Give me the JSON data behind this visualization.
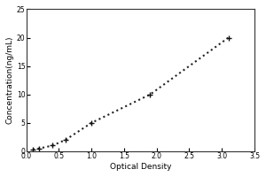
{
  "x_data": [
    0.1,
    0.2,
    0.4,
    0.6,
    1.0,
    1.9,
    3.1
  ],
  "y_data": [
    0.3,
    0.5,
    1.0,
    2.0,
    5.0,
    10.0,
    20.0
  ],
  "xlabel": "Optical Density",
  "ylabel": "Concentration(ng/mL)",
  "xlim": [
    0,
    3.5
  ],
  "ylim": [
    0,
    25
  ],
  "xticks": [
    0,
    0.5,
    1.0,
    1.5,
    2.0,
    2.5,
    3.0,
    3.5
  ],
  "yticks": [
    0,
    5,
    10,
    15,
    20,
    25
  ],
  "line_color": "#222222",
  "marker": "+",
  "marker_color": "#111111",
  "marker_size": 5,
  "line_style": ":",
  "line_width": 1.5,
  "bg_color": "#ffffff",
  "font_size_label": 6.5,
  "font_size_tick": 5.5
}
